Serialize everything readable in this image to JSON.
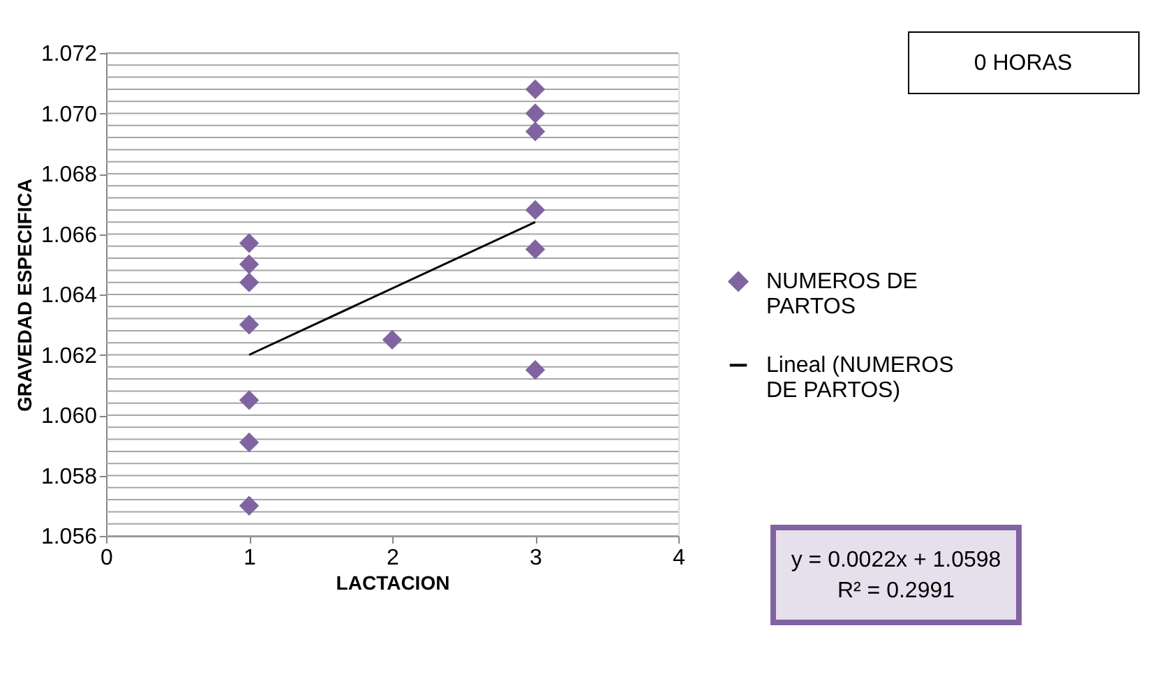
{
  "chart_data": {
    "type": "scatter",
    "xlabel": "LACTACION",
    "ylabel": "GRAVEDAD ESPECIFICA",
    "xlim": [
      0,
      4
    ],
    "xticks": [
      0,
      1,
      2,
      3,
      4
    ],
    "ylim": [
      1.056,
      1.072
    ],
    "yticks": [
      1.056,
      {
        "value": 1.0564,
        "label": null
      },
      {
        "value": 1.0568,
        "label": null
      },
      {
        "value": 1.0572,
        "label": null
      },
      {
        "value": 1.0576,
        "label": null
      },
      1.058,
      {
        "value": 1.0584,
        "label": null
      },
      {
        "value": 1.0588,
        "label": null
      },
      {
        "value": 1.0592,
        "label": null
      },
      {
        "value": 1.0596,
        "label": null
      },
      {
        "value": 1.06,
        "label": "1.060"
      },
      {
        "value": 1.0604,
        "label": null
      },
      {
        "value": 1.0608,
        "label": null
      },
      {
        "value": 1.0612,
        "label": null
      },
      {
        "value": 1.0616,
        "label": null
      },
      1.062,
      {
        "value": 1.0624,
        "label": null
      },
      {
        "value": 1.0628,
        "label": null
      },
      {
        "value": 1.0632,
        "label": null
      },
      {
        "value": 1.0636,
        "label": null
      },
      1.064,
      {
        "value": 1.0644,
        "label": null
      },
      {
        "value": 1.0648,
        "label": null
      },
      {
        "value": 1.0652,
        "label": null
      },
      {
        "value": 1.0656,
        "label": null
      },
      1.066,
      {
        "value": 1.0664,
        "label": null
      },
      {
        "value": 1.0668,
        "label": null
      },
      {
        "value": 1.0672,
        "label": null
      },
      {
        "value": 1.0676,
        "label": null
      },
      1.068,
      {
        "value": 1.0684,
        "label": null
      },
      {
        "value": 1.0688,
        "label": null
      },
      {
        "value": 1.0692,
        "label": null
      },
      {
        "value": 1.0696,
        "label": null
      },
      {
        "value": 1.07,
        "label": "1.070"
      },
      {
        "value": 1.0704,
        "label": null
      },
      {
        "value": 1.0708,
        "label": null
      },
      {
        "value": 1.0712,
        "label": null
      },
      {
        "value": 1.0716,
        "label": null
      },
      1.072
    ],
    "grid": "y",
    "legend": "right",
    "series": [
      {
        "name": "NUMEROS DE PARTOS",
        "marker": "diamond",
        "color": "#8064a2",
        "x": [
          1,
          1,
          1,
          1,
          1,
          1,
          1,
          2,
          3,
          3,
          3,
          3,
          3,
          3
        ],
        "values": [
          1.0657,
          1.065,
          1.0644,
          1.063,
          1.0605,
          1.0591,
          1.057,
          1.0625,
          1.0708,
          1.07,
          1.0694,
          1.0668,
          1.0655,
          1.0615
        ]
      },
      {
        "name": "Lineal (NUMEROS DE PARTOS)",
        "type": "line",
        "line_style": "solid",
        "color": "#000000",
        "x": [
          1,
          3
        ],
        "values": [
          1.062,
          1.0664
        ]
      }
    ],
    "annotations": [
      "0 HORAS",
      "y = 0.0022x + 1.0598",
      "R² = 0.2991"
    ]
  }
}
